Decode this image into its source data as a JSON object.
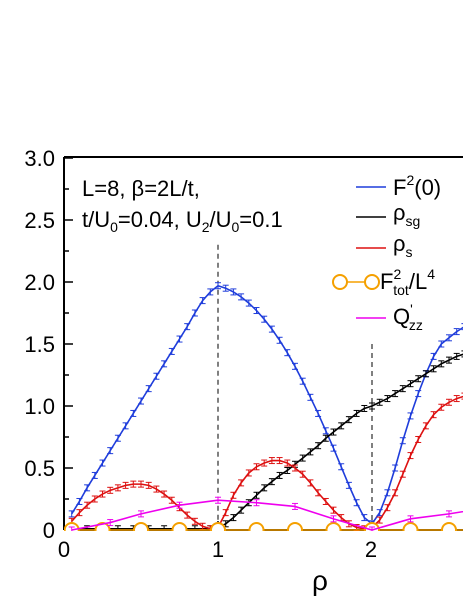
{
  "chart_data": {
    "type": "line",
    "title": "",
    "xlabel": "ρ",
    "ylabel": "",
    "xlim": [
      0,
      3
    ],
    "ylim": [
      0,
      3
    ],
    "x_ticks": [
      "0",
      "1",
      "2"
    ],
    "y_ticks": [
      "0",
      "0.5",
      "1.0",
      "1.5",
      "2.0",
      "2.5",
      "3.0"
    ],
    "annotation": {
      "line1": "L=8, β=2L/t,",
      "line2_a": "t/U",
      "line2_a_sub": "0",
      "line2_b": "=0.04, U",
      "line2_b_sub": "2",
      "line2_c": "/U",
      "line2_c_sub": "0",
      "line2_d": "=0.1"
    },
    "vlines": [
      1,
      2
    ],
    "legend_position": "top-right",
    "series": [
      {
        "key": "F2_0",
        "legend_main": "F",
        "legend_sup": "2",
        "legend_tail": "(0)",
        "color": "#1f3ddb",
        "marker": "errorbar",
        "x": [
          0.05,
          0.1,
          0.15,
          0.2,
          0.25,
          0.3,
          0.35,
          0.4,
          0.45,
          0.5,
          0.55,
          0.6,
          0.65,
          0.7,
          0.75,
          0.8,
          0.85,
          0.9,
          0.95,
          1.0,
          1.05,
          1.1,
          1.15,
          1.2,
          1.25,
          1.3,
          1.35,
          1.4,
          1.45,
          1.5,
          1.55,
          1.6,
          1.65,
          1.7,
          1.75,
          1.8,
          1.85,
          1.9,
          1.95,
          2.0,
          2.05,
          2.1,
          2.15,
          2.2,
          2.25,
          2.3,
          2.35,
          2.4,
          2.45,
          2.5,
          2.55,
          2.6,
          2.65
        ],
        "y": [
          0.13,
          0.23,
          0.34,
          0.44,
          0.54,
          0.64,
          0.74,
          0.84,
          0.94,
          1.04,
          1.14,
          1.24,
          1.34,
          1.44,
          1.54,
          1.64,
          1.75,
          1.85,
          1.92,
          1.97,
          1.95,
          1.92,
          1.88,
          1.83,
          1.77,
          1.7,
          1.62,
          1.53,
          1.43,
          1.32,
          1.2,
          1.07,
          0.94,
          0.8,
          0.66,
          0.51,
          0.36,
          0.22,
          0.1,
          0.05,
          0.14,
          0.3,
          0.5,
          0.72,
          0.92,
          1.1,
          1.26,
          1.4,
          1.5,
          1.55,
          1.6,
          1.64,
          1.66
        ]
      },
      {
        "key": "rho_sg",
        "legend_main": "ρ",
        "legend_sub": "sg",
        "color": "#000000",
        "marker": "errorbar",
        "x": [
          0.05,
          0.15,
          0.25,
          0.35,
          0.45,
          0.55,
          0.65,
          0.75,
          0.85,
          0.95,
          1.0,
          1.05,
          1.1,
          1.15,
          1.2,
          1.25,
          1.3,
          1.35,
          1.4,
          1.45,
          1.5,
          1.55,
          1.6,
          1.65,
          1.7,
          1.75,
          1.8,
          1.85,
          1.9,
          1.95,
          2.0,
          2.05,
          2.1,
          2.15,
          2.2,
          2.25,
          2.3,
          2.35,
          2.4,
          2.45,
          2.5,
          2.55,
          2.6,
          2.65
        ],
        "y": [
          0.01,
          0.01,
          0.01,
          0.01,
          0.01,
          0.01,
          0.01,
          0.01,
          0.01,
          0.01,
          0.02,
          0.05,
          0.1,
          0.16,
          0.22,
          0.28,
          0.34,
          0.39,
          0.44,
          0.48,
          0.53,
          0.58,
          0.63,
          0.68,
          0.74,
          0.79,
          0.84,
          0.89,
          0.94,
          0.98,
          1.0,
          1.03,
          1.06,
          1.1,
          1.14,
          1.18,
          1.22,
          1.26,
          1.3,
          1.34,
          1.37,
          1.4,
          1.42,
          1.44
        ]
      },
      {
        "key": "rho_s",
        "legend_main": "ρ",
        "legend_sub": "s",
        "color": "#dd1111",
        "marker": "errorbar",
        "x": [
          0.05,
          0.1,
          0.15,
          0.2,
          0.25,
          0.3,
          0.35,
          0.4,
          0.45,
          0.5,
          0.55,
          0.6,
          0.65,
          0.7,
          0.75,
          0.8,
          0.85,
          0.9,
          0.95,
          1.0,
          1.05,
          1.1,
          1.15,
          1.2,
          1.25,
          1.3,
          1.35,
          1.4,
          1.45,
          1.5,
          1.55,
          1.6,
          1.65,
          1.7,
          1.75,
          1.8,
          1.85,
          1.9,
          1.95,
          2.0,
          2.05,
          2.1,
          2.15,
          2.2,
          2.25,
          2.3,
          2.35,
          2.4,
          2.45,
          2.5,
          2.55,
          2.6,
          2.65
        ],
        "y": [
          0.07,
          0.14,
          0.2,
          0.25,
          0.29,
          0.32,
          0.34,
          0.36,
          0.37,
          0.37,
          0.36,
          0.33,
          0.29,
          0.24,
          0.18,
          0.12,
          0.07,
          0.03,
          0.01,
          0.02,
          0.14,
          0.28,
          0.38,
          0.46,
          0.51,
          0.54,
          0.56,
          0.56,
          0.54,
          0.5,
          0.45,
          0.38,
          0.3,
          0.23,
          0.16,
          0.1,
          0.05,
          0.02,
          0.01,
          0.02,
          0.08,
          0.18,
          0.3,
          0.45,
          0.6,
          0.73,
          0.84,
          0.93,
          0.99,
          1.03,
          1.06,
          1.08,
          1.09
        ]
      },
      {
        "key": "F2_tot",
        "legend_main": "F",
        "legend_sup": "2",
        "legend_sub": "tot",
        "legend_tail": "/L",
        "legend_tail_sup": "4",
        "color": "#f5a000",
        "marker": "circle",
        "x": [
          0.05,
          0.25,
          0.5,
          0.75,
          1.0,
          1.25,
          1.5,
          1.75,
          2.0,
          2.25,
          2.5,
          2.75
        ],
        "y": [
          0,
          0,
          0,
          0,
          0,
          0,
          0,
          0,
          0,
          0,
          0,
          0
        ]
      },
      {
        "key": "Qzz",
        "legend_main": "Q",
        "legend_sup": "'",
        "legend_sub": "zz",
        "color": "#ee00ee",
        "marker": "errorbar-sparse",
        "x": [
          0.05,
          0.3,
          0.5,
          0.75,
          1.0,
          1.25,
          1.5,
          1.75,
          2.0,
          2.25,
          2.5,
          2.75
        ],
        "y": [
          0.0,
          0.06,
          0.13,
          0.2,
          0.24,
          0.22,
          0.19,
          0.09,
          0.0,
          0.09,
          0.13,
          0.18
        ]
      }
    ]
  }
}
